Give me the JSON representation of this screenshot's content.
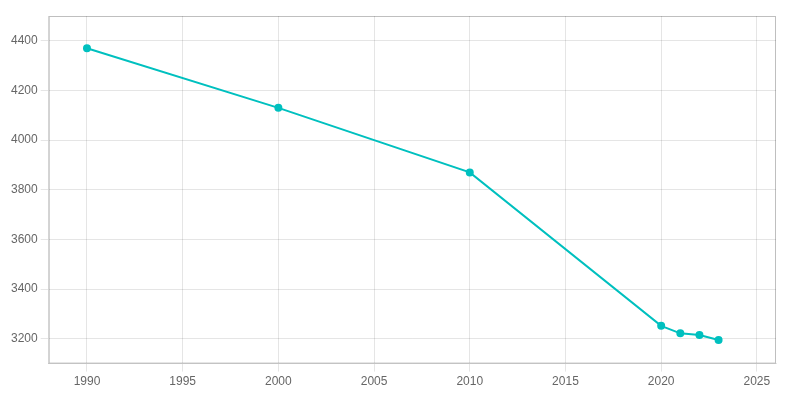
{
  "chart_data": {
    "type": "line",
    "x": [
      1990,
      2000,
      2010,
      2020,
      2021,
      2022,
      2023
    ],
    "values": [
      4370,
      4130,
      3870,
      3252,
      3222,
      3215,
      3195
    ],
    "color": "#00c0bf",
    "marker": "circle",
    "xlim": [
      1988,
      2026
    ],
    "xticks": [
      1990,
      1995,
      2000,
      2005,
      2010,
      2015,
      2020,
      2025
    ],
    "ylim": [
      3100,
      4500
    ],
    "yticks": [
      3200,
      3400,
      3600,
      3800,
      4000,
      4200,
      4400
    ],
    "grid": true
  }
}
